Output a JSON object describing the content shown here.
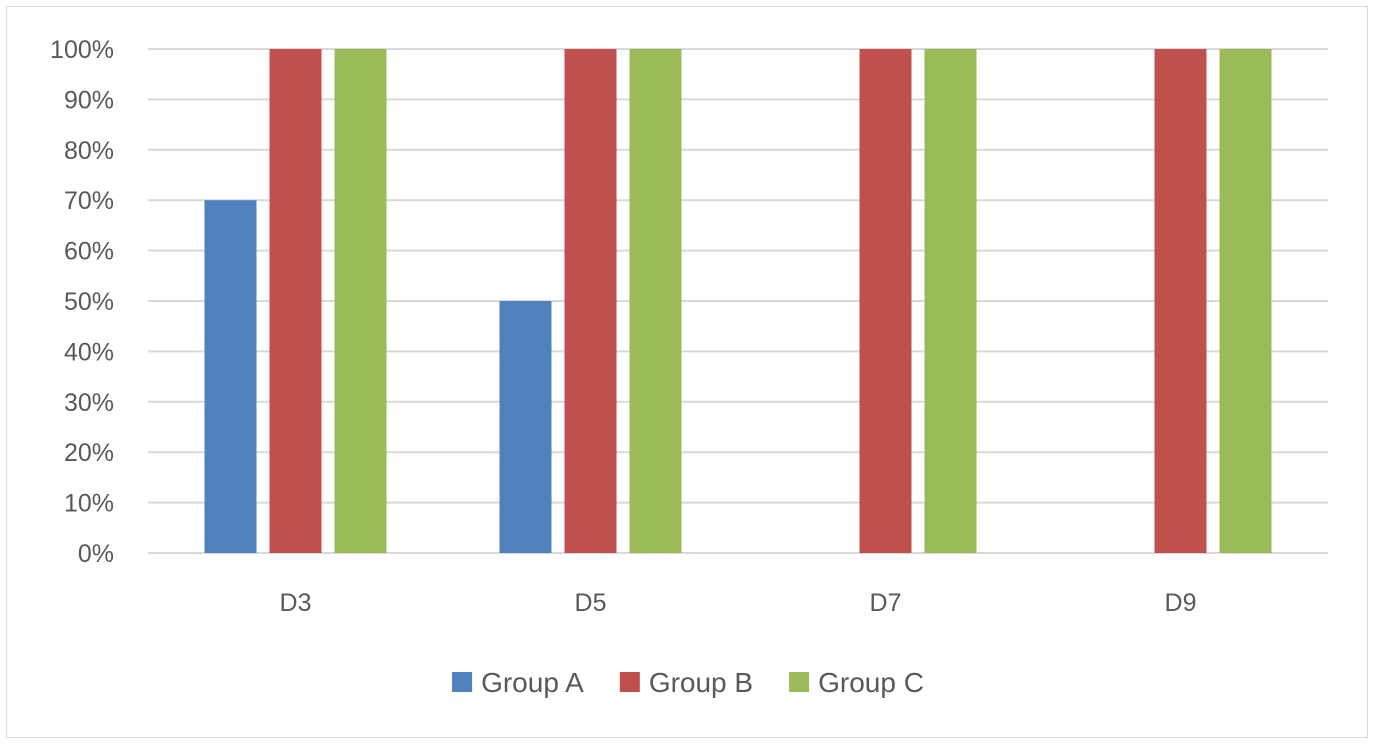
{
  "chart_data": {
    "type": "bar",
    "title": "",
    "xlabel": "",
    "ylabel": "",
    "categories": [
      "D3",
      "D5",
      "D7",
      "D9"
    ],
    "series": [
      {
        "name": "Group A",
        "color": "#4f81bd",
        "values": [
          70,
          50,
          0,
          0
        ]
      },
      {
        "name": "Group B",
        "color": "#c0504d",
        "values": [
          100,
          100,
          100,
          100
        ]
      },
      {
        "name": "Group C",
        "color": "#9bbb59",
        "values": [
          100,
          100,
          100,
          100
        ]
      }
    ],
    "ylim": [
      0,
      100
    ],
    "yticks": [
      0,
      10,
      20,
      30,
      40,
      50,
      60,
      70,
      80,
      90,
      100
    ],
    "ytick_labels": [
      "0%",
      "10%",
      "20%",
      "30%",
      "40%",
      "50%",
      "60%",
      "70%",
      "80%",
      "90%",
      "100%"
    ],
    "grid": true,
    "legend_position": "bottom"
  },
  "colors": {
    "gridline": "#d9d9d9",
    "axis_text": "#595959",
    "frame_border": "#d9d9d9"
  }
}
